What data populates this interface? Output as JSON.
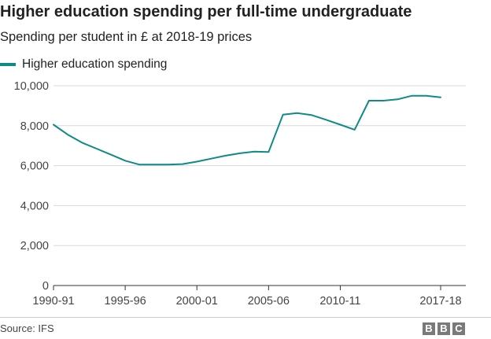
{
  "header": {
    "title": "Higher education spending per full-time undergraduate",
    "subtitle": "Spending per student in £ at 2018-19 prices"
  },
  "footer": {
    "source": "Source: IFS",
    "logo_letters": [
      "B",
      "B",
      "C"
    ]
  },
  "colors": {
    "series": "#0f8a86",
    "grid": "#d9d9d9",
    "axis": "#333333"
  },
  "chart_data": {
    "type": "line",
    "title": "Higher education spending per full-time undergraduate",
    "subtitle": "Spending per student in £ at 2018-19 prices",
    "x_tick_labels": [
      "1990-91",
      "1995-96",
      "2000-01",
      "2005-06",
      "2010-11",
      "2017-18"
    ],
    "y_ticks": [
      0,
      2000,
      4000,
      6000,
      8000,
      10000
    ],
    "y_tick_labels": [
      "0",
      "2,000",
      "4,000",
      "6,000",
      "8,000",
      "10,000"
    ],
    "ylim": [
      0,
      10000
    ],
    "grid": "horizontal",
    "legend_position": "top-left",
    "x": [
      "1990-91",
      "1991-92",
      "1992-93",
      "1993-94",
      "1994-95",
      "1995-96",
      "1996-97",
      "1997-98",
      "1998-99",
      "1999-00",
      "2000-01",
      "2001-02",
      "2002-03",
      "2003-04",
      "2004-05",
      "2005-06",
      "2006-07",
      "2007-08",
      "2008-09",
      "2009-10",
      "2010-11",
      "2011-12",
      "2012-13",
      "2013-14",
      "2014-15",
      "2015-16",
      "2016-17",
      "2017-18"
    ],
    "series": [
      {
        "name": "Higher education spending",
        "values": [
          8050,
          7550,
          7150,
          6850,
          6550,
          6250,
          6050,
          6050,
          6050,
          6080,
          6200,
          6350,
          6500,
          6620,
          6700,
          6680,
          8550,
          8630,
          8530,
          8300,
          8050,
          7800,
          9250,
          9250,
          9320,
          9500,
          9500,
          9420
        ]
      }
    ]
  }
}
